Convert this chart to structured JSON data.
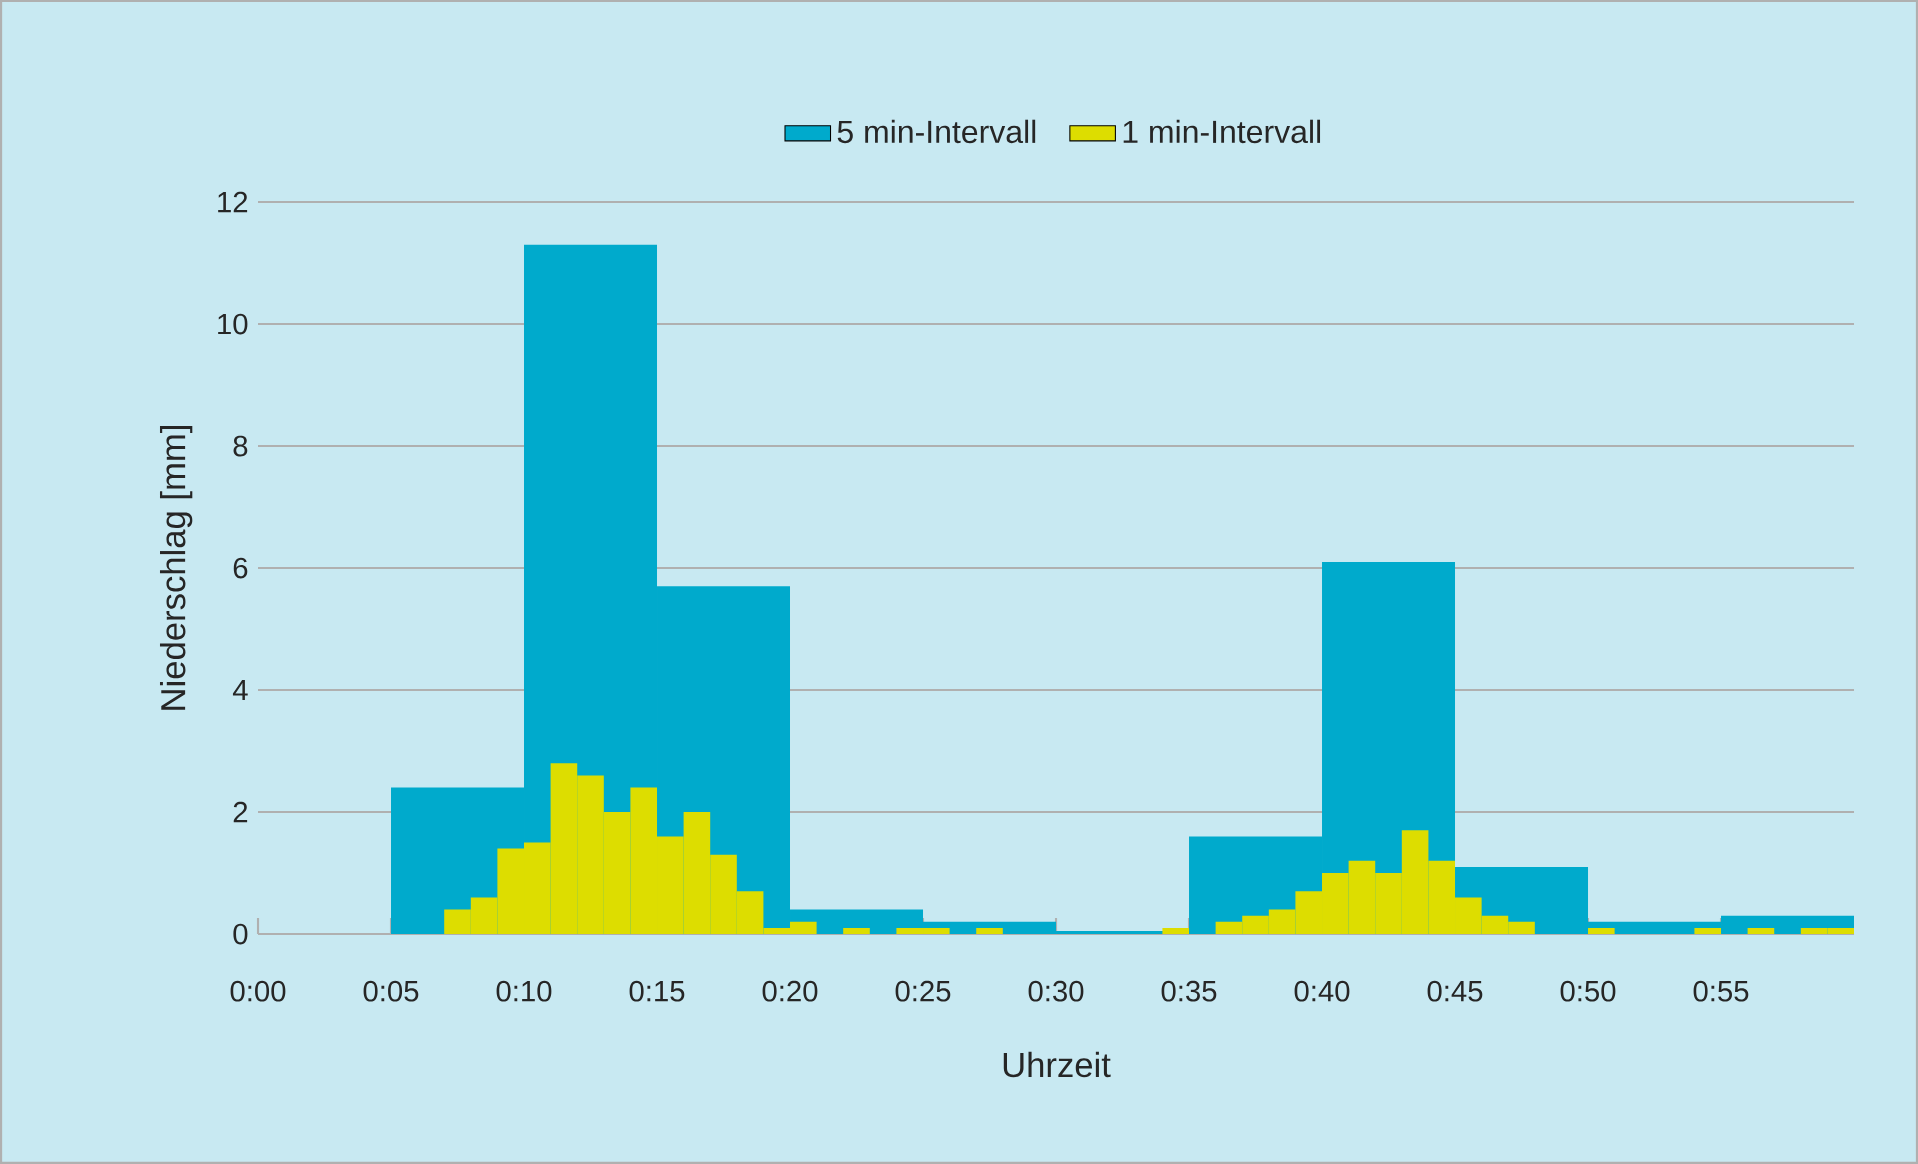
{
  "chart_data": {
    "type": "histogram",
    "xlabel": "Uhrzeit",
    "ylabel": "Niederschlag [mm]",
    "xlim": [
      0,
      60
    ],
    "ylim": [
      0,
      12
    ],
    "xticks": [
      {
        "value": 0,
        "label": "0:00"
      },
      {
        "value": 5,
        "label": "0:05"
      },
      {
        "value": 10,
        "label": "0:10"
      },
      {
        "value": 15,
        "label": "0:15"
      },
      {
        "value": 20,
        "label": "0:20"
      },
      {
        "value": 25,
        "label": "0:25"
      },
      {
        "value": 30,
        "label": "0:30"
      },
      {
        "value": 35,
        "label": "0:35"
      },
      {
        "value": 40,
        "label": "0:40"
      },
      {
        "value": 45,
        "label": "0:45"
      },
      {
        "value": 50,
        "label": "0:50"
      },
      {
        "value": 55,
        "label": "0:55"
      }
    ],
    "yticks": [
      0,
      2,
      4,
      6,
      8,
      10,
      12
    ],
    "grid": "y",
    "legend": "top",
    "bins": [
      0,
      1,
      2,
      3,
      4,
      5,
      6,
      7,
      8,
      9,
      10,
      11,
      12,
      13,
      14,
      15,
      16,
      17,
      18,
      19,
      20,
      21,
      22,
      23,
      24,
      25,
      26,
      27,
      28,
      29,
      30,
      31,
      32,
      33,
      34,
      35,
      36,
      37,
      38,
      39,
      40,
      41,
      42,
      43,
      44,
      45,
      46,
      47,
      48,
      49,
      50,
      51,
      52,
      53,
      54,
      55,
      56,
      57,
      58,
      59,
      60
    ],
    "series": [
      {
        "name": "5 min-Intervall",
        "type": "bar",
        "color": "#00aacc",
        "x": [
          2.5,
          7.5,
          12.5,
          17.5,
          22.5,
          27.5,
          32.5,
          37.5,
          42.5,
          47.5,
          52.5,
          57.5
        ],
        "values": [
          0,
          2.4,
          11.3,
          5.7,
          0.4,
          0.2,
          0.05,
          1.6,
          6.1,
          1.1,
          0.2,
          0.3
        ]
      },
      {
        "name": "1 min-Intervall",
        "color": "#dddd00",
        "values": [
          0,
          0,
          0,
          0,
          0,
          0,
          0,
          0.4,
          0.6,
          1.4,
          1.5,
          2.8,
          2.6,
          2.0,
          2.4,
          1.6,
          2.0,
          1.3,
          0.7,
          0.1,
          0.2,
          0,
          0.1,
          0,
          0.1,
          0.1,
          0,
          0.1,
          0,
          0,
          0,
          0,
          0,
          0,
          0.1,
          0,
          0.2,
          0.3,
          0.4,
          0.7,
          1.0,
          1.2,
          1.0,
          1.7,
          1.2,
          0.6,
          0.3,
          0.2,
          0,
          0,
          0.1,
          0,
          0,
          0,
          0.1,
          0,
          0.1,
          0,
          0.1,
          0.1
        ]
      }
    ]
  }
}
